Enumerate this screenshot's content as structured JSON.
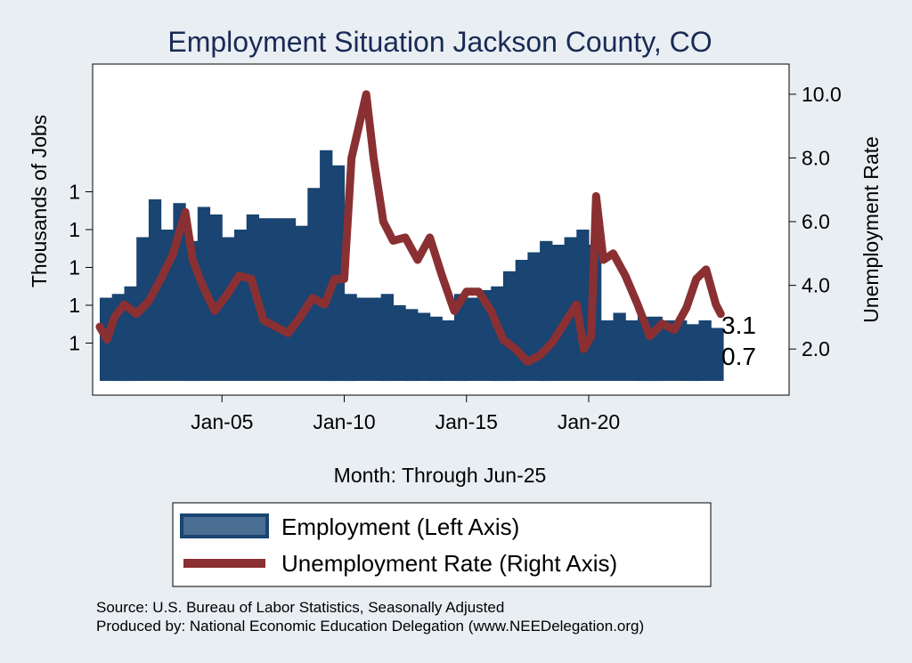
{
  "chart_data": {
    "type": "bar+line",
    "title": "Employment Situation Jackson  County, CO",
    "xlabel": "Month: Through Jun-25",
    "ylabel_left": "Thousands of Jobs",
    "ylabel_right": "Unemployment Rate",
    "x_range": [
      2000.0,
      2025.5
    ],
    "x_ticks": [
      {
        "value": 2005,
        "label": "Jan-05"
      },
      {
        "value": 2010,
        "label": "Jan-10"
      },
      {
        "value": 2015,
        "label": "Jan-15"
      },
      {
        "value": 2020,
        "label": "Jan-20"
      }
    ],
    "y_left_range": [
      0.6,
      1.4
    ],
    "y_left_ticks": [
      {
        "value": 0.7,
        "label": "1"
      },
      {
        "value": 0.8,
        "label": "1"
      },
      {
        "value": 0.9,
        "label": "1"
      },
      {
        "value": 1.0,
        "label": "1"
      },
      {
        "value": 1.1,
        "label": "1"
      }
    ],
    "y_right_range": [
      1.0,
      10.5
    ],
    "y_right_ticks": [
      {
        "value": 2.0,
        "label": "2.0"
      },
      {
        "value": 4.0,
        "label": "4.0"
      },
      {
        "value": 6.0,
        "label": "6.0"
      },
      {
        "value": 8.0,
        "label": "8.0"
      },
      {
        "value": 10.0,
        "label": "10.0"
      }
    ],
    "series": [
      {
        "name": "Employment (Left Axis)",
        "axis": "left",
        "type": "bar",
        "color": "#1a4471",
        "x": [
          2000.0,
          2000.5,
          2001.0,
          2001.5,
          2002.0,
          2002.5,
          2003.0,
          2003.5,
          2004.0,
          2004.5,
          2005.0,
          2005.5,
          2006.0,
          2006.5,
          2007.0,
          2007.5,
          2008.0,
          2008.5,
          2009.0,
          2009.5,
          2010.0,
          2010.5,
          2011.0,
          2011.5,
          2012.0,
          2012.5,
          2013.0,
          2013.5,
          2014.0,
          2014.5,
          2015.0,
          2015.5,
          2016.0,
          2016.5,
          2017.0,
          2017.5,
          2018.0,
          2018.5,
          2019.0,
          2019.5,
          2020.0,
          2020.5,
          2021.0,
          2021.5,
          2022.0,
          2022.5,
          2023.0,
          2023.5,
          2024.0,
          2024.5,
          2025.0
        ],
        "values": [
          0.82,
          0.83,
          0.85,
          0.98,
          1.08,
          1.0,
          1.07,
          0.97,
          1.06,
          1.04,
          0.98,
          1.0,
          1.04,
          1.03,
          1.03,
          1.03,
          1.01,
          1.11,
          1.21,
          1.17,
          0.83,
          0.82,
          0.82,
          0.83,
          0.8,
          0.79,
          0.78,
          0.77,
          0.76,
          0.83,
          0.82,
          0.84,
          0.85,
          0.89,
          0.92,
          0.94,
          0.97,
          0.96,
          0.98,
          1.0,
          0.96,
          0.76,
          0.78,
          0.76,
          0.77,
          0.77,
          0.76,
          0.76,
          0.75,
          0.76,
          0.74
        ]
      },
      {
        "name": "Unemployment Rate (Right Axis)",
        "axis": "right",
        "type": "line",
        "color": "#8a3033",
        "x": [
          2000.0,
          2000.3,
          2000.6,
          2001.0,
          2001.5,
          2002.0,
          2002.5,
          2003.0,
          2003.5,
          2003.8,
          2004.2,
          2004.7,
          2005.2,
          2005.7,
          2006.2,
          2006.7,
          2007.2,
          2007.7,
          2008.2,
          2008.7,
          2009.2,
          2009.6,
          2010.0,
          2010.3,
          2010.6,
          2010.9,
          2011.2,
          2011.6,
          2012.0,
          2012.5,
          2013.0,
          2013.5,
          2014.0,
          2014.5,
          2015.0,
          2015.5,
          2016.0,
          2016.5,
          2017.0,
          2017.5,
          2018.0,
          2018.5,
          2019.0,
          2019.5,
          2019.8,
          2020.1,
          2020.3,
          2020.6,
          2021.0,
          2021.5,
          2022.0,
          2022.5,
          2023.0,
          2023.5,
          2024.0,
          2024.4,
          2024.8,
          2025.2,
          2025.4
        ],
        "values": [
          2.7,
          2.3,
          3.0,
          3.4,
          3.1,
          3.5,
          4.2,
          5.0,
          6.3,
          4.8,
          4.0,
          3.2,
          3.7,
          4.3,
          4.2,
          2.9,
          2.7,
          2.5,
          3.0,
          3.6,
          3.4,
          4.2,
          4.2,
          8.0,
          9.0,
          10.0,
          8.0,
          6.0,
          5.4,
          5.5,
          4.8,
          5.5,
          4.3,
          3.2,
          3.8,
          3.8,
          3.2,
          2.3,
          2.0,
          1.6,
          1.8,
          2.2,
          2.8,
          3.4,
          2.0,
          2.4,
          6.8,
          4.8,
          5.0,
          4.3,
          3.4,
          2.4,
          2.8,
          2.6,
          3.3,
          4.2,
          4.5,
          3.4,
          3.1
        ]
      }
    ],
    "end_labels": {
      "unemployment": "3.1",
      "employment": "0.7"
    },
    "legend_position": "bottom",
    "grid": false
  },
  "legend": {
    "employment": "Employment (Left Axis)",
    "unemployment": "Unemployment Rate (Right Axis)"
  },
  "source": {
    "line1": "Source: U.S. Bureau of Labor Statistics, Seasonally Adjusted",
    "line2": "Produced by: National Economic Education Delegation (www.NEEDelegation.org)"
  },
  "colors": {
    "background": "#e9eef3",
    "plot_background": "#ffffff",
    "employment": "#1a4471",
    "employment_legend_fill": "#4a6d92",
    "unemployment": "#8a3033",
    "title": "#1a2a55"
  }
}
